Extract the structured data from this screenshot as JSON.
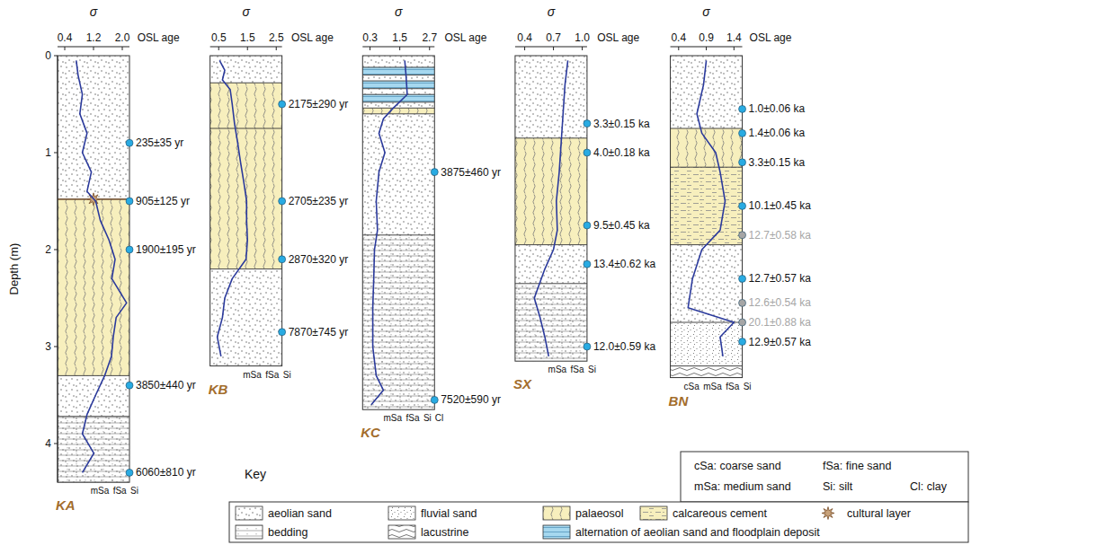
{
  "chart_data": [
    {
      "type": "line",
      "title": "KA",
      "xlabel": "σ",
      "ylabel": "Depth (m)",
      "age_header": "OSL age",
      "xlim": [
        0.2,
        2.2
      ],
      "xticks": [
        0.4,
        1.2,
        {
          "value": 2,
          "label": "2.0"
        }
      ],
      "ylim": [
        0,
        4.4
      ],
      "yticks": [
        0,
        1,
        2,
        3,
        4
      ],
      "series": [
        {
          "color": "#2b3a9c",
          "x": [
            0.72,
            0.77,
            0.89,
            0.82,
            1.02,
            0.89,
            1.14,
            1.02,
            1.26,
            1.39,
            1.63,
            1.8,
            1.71,
            2.12,
            1.83,
            1.75,
            1.7,
            1.51,
            1.26,
            1.02,
            0.89,
            1.21,
            0.89
          ],
          "y": [
            0.05,
            0.2,
            0.4,
            0.6,
            0.8,
            1.0,
            1.2,
            1.4,
            1.5,
            1.7,
            1.9,
            2.1,
            2.3,
            2.55,
            2.7,
            2.9,
            3.1,
            3.3,
            3.5,
            3.7,
            3.9,
            4.1,
            4.3
          ]
        }
      ],
      "layers": [
        {
          "top": 0,
          "bottom": 1.48,
          "facies": [
            "aeolian sand"
          ]
        },
        {
          "top": 1.48,
          "bottom": 3.3,
          "facies": [
            "palaeosol"
          ]
        },
        {
          "top": 3.3,
          "bottom": 3.72,
          "facies": [
            "aeolian sand"
          ]
        },
        {
          "top": 3.72,
          "bottom": 4.4,
          "facies": [
            "aeolian sand",
            "bedding"
          ]
        },
        {
          "top": 1.44,
          "bottom": 1.52,
          "facies": [
            "cultural layer"
          ]
        }
      ],
      "grain_sizes": [
        "mSa",
        "fSa",
        "Si"
      ],
      "osl_ages": [
        {
          "depth": 0.9,
          "label": "235±35 yr",
          "color": "#29abe2"
        },
        {
          "depth": 1.5,
          "label": "905±125 yr",
          "color": "#29abe2"
        },
        {
          "depth": 2.0,
          "label": "1900±195 yr",
          "color": "#29abe2"
        },
        {
          "depth": 3.4,
          "label": "3850±440 yr",
          "color": "#29abe2"
        },
        {
          "depth": 4.3,
          "label": "6060±810 yr",
          "color": "#29abe2"
        }
      ]
    },
    {
      "type": "line",
      "title": "KB",
      "xlabel": "σ",
      "age_header": "OSL age",
      "tick_labels": "x",
      "xlim": [
        0.2,
        2.7
      ],
      "xticks": [
        0.5,
        1.5,
        2.5
      ],
      "ylim": [
        0,
        3.2
      ],
      "series": [
        {
          "color": "#2b3a9c",
          "x": [
            0.53,
            0.71,
            0.63,
            0.9,
            0.97,
            1.05,
            1.16,
            1.26,
            1.37,
            1.47,
            1.47,
            1.5,
            1.45,
            0.97,
            0.71,
            0.63,
            0.45,
            0.58
          ],
          "y": [
            0.05,
            0.15,
            0.25,
            0.35,
            0.5,
            0.7,
            0.9,
            1.1,
            1.3,
            1.5,
            1.7,
            1.9,
            2.1,
            2.3,
            2.5,
            2.7,
            2.9,
            3.1
          ]
        }
      ],
      "layers": [
        {
          "top": 0,
          "bottom": 0.28,
          "facies": [
            "aeolian sand"
          ]
        },
        {
          "top": 0.28,
          "bottom": 0.75,
          "facies": [
            "palaeosol"
          ]
        },
        {
          "top": 0.75,
          "bottom": 2.2,
          "facies": [
            "palaeosol"
          ]
        },
        {
          "top": 2.2,
          "bottom": 3.2,
          "facies": [
            "aeolian sand"
          ]
        }
      ],
      "grain_sizes": [
        "mSa",
        "fSa",
        "Si"
      ],
      "osl_ages": [
        {
          "depth": 0.5,
          "label": "2175±290 yr",
          "color": "#29abe2"
        },
        {
          "depth": 1.5,
          "label": "2705±235 yr",
          "color": "#29abe2"
        },
        {
          "depth": 2.1,
          "label": "2870±320 yr",
          "color": "#29abe2"
        },
        {
          "depth": 2.85,
          "label": "7870±745 yr",
          "color": "#29abe2"
        }
      ]
    },
    {
      "type": "line",
      "title": "KC",
      "xlabel": "σ",
      "age_header": "OSL age",
      "tick_labels": "x",
      "xlim": [
        0,
        2.9
      ],
      "xticks": [
        0.3,
        1.5,
        2.7
      ],
      "ylim": [
        0,
        3.65
      ],
      "series": [
        {
          "color": "#2b3a9c",
          "x": [
            1.7,
            1.75,
            1.8,
            1.2,
            0.84,
            0.66,
            0.9,
            0.66,
            0.55,
            0.6,
            0.48,
            0.45,
            0.41,
            0.41,
            0.55,
            0.84,
            0.35
          ],
          "y": [
            0.05,
            0.2,
            0.4,
            0.55,
            0.65,
            0.8,
            1.0,
            1.2,
            1.5,
            1.8,
            2.0,
            2.3,
            2.6,
            3.0,
            3.3,
            3.45,
            3.6
          ]
        }
      ],
      "layers": [
        {
          "top": 0,
          "bottom": 0.12,
          "facies": [
            "aeolian sand"
          ]
        },
        {
          "top": 0.12,
          "bottom": 0.2,
          "facies": [
            "alternation of aeolian sand and floodplain deposit"
          ]
        },
        {
          "top": 0.2,
          "bottom": 0.26,
          "facies": [
            "aeolian sand"
          ]
        },
        {
          "top": 0.26,
          "bottom": 0.34,
          "facies": [
            "alternation of aeolian sand and floodplain deposit"
          ]
        },
        {
          "top": 0.34,
          "bottom": 0.4,
          "facies": [
            "aeolian sand"
          ]
        },
        {
          "top": 0.4,
          "bottom": 0.48,
          "facies": [
            "alternation of aeolian sand and floodplain deposit"
          ]
        },
        {
          "top": 0.48,
          "bottom": 0.54,
          "facies": [
            "aeolian sand"
          ]
        },
        {
          "top": 0.54,
          "bottom": 0.6,
          "facies": [
            "palaeosol"
          ]
        },
        {
          "top": 0.6,
          "bottom": 1.85,
          "facies": [
            "aeolian sand"
          ]
        },
        {
          "top": 1.85,
          "bottom": 3.65,
          "facies": [
            "aeolian sand",
            "bedding"
          ]
        }
      ],
      "grain_sizes": [
        "mSa",
        "fSa",
        "Si",
        "Cl"
      ],
      "osl_ages": [
        {
          "depth": 1.2,
          "label": "3875±460 yr",
          "color": "#29abe2"
        },
        {
          "depth": 3.55,
          "label": "7520±590 yr",
          "color": "#29abe2"
        }
      ]
    },
    {
      "type": "line",
      "title": "SX",
      "xlabel": "σ",
      "age_header": "OSL age",
      "tick_labels": "x",
      "xlim": [
        0.3,
        1.05
      ],
      "xticks": [
        0.4,
        0.7,
        {
          "value": 1,
          "label": "1.0"
        }
      ],
      "ylim": [
        0,
        3.15
      ],
      "series": [
        {
          "color": "#2b3a9c",
          "x": [
            0.85,
            0.82,
            0.8,
            0.78,
            0.76,
            0.73,
            0.74,
            0.7,
            0.61,
            0.5,
            0.56,
            0.61,
            0.65
          ],
          "y": [
            0.05,
            0.3,
            0.6,
            0.9,
            1.2,
            1.5,
            1.8,
            2.0,
            2.2,
            2.5,
            2.7,
            2.9,
            3.1
          ]
        }
      ],
      "layers": [
        {
          "top": 0,
          "bottom": 0.85,
          "facies": [
            "aeolian sand"
          ]
        },
        {
          "top": 0.85,
          "bottom": 1.95,
          "facies": [
            "palaeosol"
          ]
        },
        {
          "top": 1.95,
          "bottom": 2.35,
          "facies": [
            "aeolian sand"
          ]
        },
        {
          "top": 2.35,
          "bottom": 3.15,
          "facies": [
            "aeolian sand",
            "bedding"
          ]
        }
      ],
      "grain_sizes": [
        "mSa",
        "fSa",
        "Si"
      ],
      "osl_ages": [
        {
          "depth": 0.7,
          "label": "3.3±0.15 ka",
          "color": "#29abe2"
        },
        {
          "depth": 1.0,
          "label": "4.0±0.18 ka",
          "color": "#29abe2"
        },
        {
          "depth": 1.75,
          "label": "9.5±0.45 ka",
          "color": "#29abe2"
        },
        {
          "depth": 2.15,
          "label": "13.4±0.62 ka",
          "color": "#29abe2"
        },
        {
          "depth": 3.0,
          "label": "12.0±0.59 ka",
          "color": "#29abe2"
        }
      ]
    },
    {
      "type": "line",
      "title": "BN",
      "xlabel": "σ",
      "age_header": "OSL age",
      "tick_labels": "x",
      "xlim": [
        0.25,
        1.55
      ],
      "xticks": [
        0.4,
        0.9,
        1.4
      ],
      "ylim": [
        0,
        3.32
      ],
      "series": [
        {
          "color": "#2b3a9c",
          "x": [
            0.9,
            0.85,
            0.73,
            0.82,
            1.07,
            1.15,
            1.24,
            1.15,
            0.82,
            0.65,
            0.57,
            1.4,
            1.15,
            1.2
          ],
          "y": [
            0.05,
            0.3,
            0.6,
            0.8,
            1.0,
            1.2,
            1.5,
            1.8,
            2.0,
            2.3,
            2.6,
            2.75,
            2.9,
            3.1
          ]
        }
      ],
      "layers": [
        {
          "top": 0,
          "bottom": 0.75,
          "facies": [
            "aeolian sand"
          ]
        },
        {
          "top": 0.75,
          "bottom": 1.15,
          "facies": [
            "palaeosol"
          ]
        },
        {
          "top": 1.15,
          "bottom": 1.95,
          "facies": [
            "calcareous cement"
          ]
        },
        {
          "top": 1.95,
          "bottom": 2.75,
          "facies": [
            "aeolian sand"
          ]
        },
        {
          "top": 2.75,
          "bottom": 3.2,
          "facies": [
            "fluvial sand"
          ]
        },
        {
          "top": 3.2,
          "bottom": 3.32,
          "facies": [
            "lacustrine"
          ]
        }
      ],
      "grain_sizes": [
        "cSa",
        "mSa",
        "fSa",
        "Si"
      ],
      "osl_ages": [
        {
          "depth": 0.55,
          "label": "1.0±0.06 ka",
          "color": "#29abe2"
        },
        {
          "depth": 0.8,
          "label": "1.4±0.06 ka",
          "color": "#29abe2"
        },
        {
          "depth": 1.1,
          "label": "3.3±0.15 ka",
          "color": "#29abe2"
        },
        {
          "depth": 1.55,
          "label": "10.1±0.45 ka",
          "color": "#29abe2"
        },
        {
          "depth": 1.85,
          "label": "12.7±0.58 ka",
          "color": "#a6a6a6"
        },
        {
          "depth": 2.3,
          "label": "12.7±0.57 ka",
          "color": "#29abe2"
        },
        {
          "depth": 2.55,
          "label": "12.6±0.54 ka",
          "color": "#a6a6a6"
        },
        {
          "depth": 2.75,
          "label": "20.1±0.88 ka",
          "color": "#a6a6a6"
        },
        {
          "depth": 2.95,
          "label": "12.9±0.57 ka",
          "color": "#29abe2"
        }
      ]
    }
  ],
  "key": {
    "title": "Key",
    "abbreviations": [
      "cSa: coarse sand",
      "fSa: fine sand",
      "mSa: medium sand",
      "Si: silt",
      "Cl: clay"
    ],
    "items": [
      "aeolian sand",
      "fluvial sand",
      "palaeosol",
      "calcareous cement",
      "cultural layer",
      "bedding",
      "lacustrine",
      "alternation of aeolian sand and floodplain deposit"
    ]
  }
}
